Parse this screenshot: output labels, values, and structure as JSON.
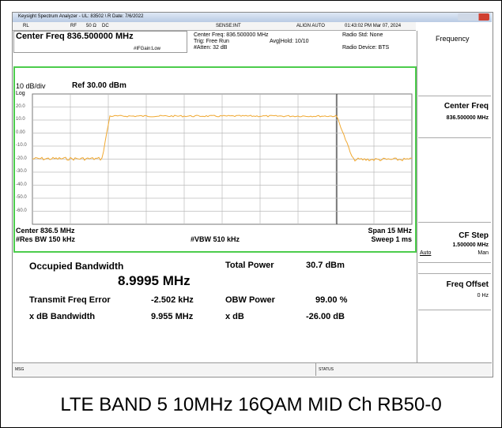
{
  "title_bar": "Keysight Spectrum Analyzer - UL: 83502 \\ R Date: 7/6/2022",
  "toolbar": {
    "rl": "RL",
    "rf": "RF",
    "impedance": "50 Ω",
    "coupling": "DC",
    "sense": "SENSE:INT",
    "align": "ALIGN AUTO",
    "datetime": "01:43:02 PM Mar 07, 2024"
  },
  "header": {
    "center_freq": "Center Freq 836.500000 MHz",
    "center_freq_info": "Center Freq: 836.500000 MHz",
    "trig": "Trig: Free Run",
    "avg_hold": "Avg|Hold: 10/10",
    "atten": "#Atten: 32 dB",
    "if_gain": "#IFGain:Low",
    "radio_std": "Radio Std: None",
    "radio_device": "Radio Device: BTS"
  },
  "graph": {
    "scale": "10 dB/div",
    "ref": "Ref 30.00 dBm",
    "log": "Log",
    "y_labels": [
      "20.0",
      "10.0",
      "0.00",
      "-10.0",
      "-20.0",
      "-30.0",
      "-40.0",
      "-50.0",
      "-60.0"
    ],
    "center": "Center 836.5 MHz",
    "span": "Span 15 MHz",
    "res_bw": "#Res BW 150 kHz",
    "vbw": "#VBW 510 kHz",
    "sweep": "Sweep 1 ms"
  },
  "results": {
    "obw_label": "Occupied Bandwidth",
    "obw_value": "8.9995 MHz",
    "total_power_label": "Total Power",
    "total_power_value": "30.7 dBm",
    "freq_error_label": "Transmit Freq Error",
    "freq_error_value": "-2.502 kHz",
    "obw_power_label": "OBW Power",
    "obw_power_value": "99.00 %",
    "xdb_bw_label": "x dB Bandwidth",
    "xdb_bw_value": "9.955 MHz",
    "xdb_label": "x dB",
    "xdb_value": "-26.00 dB"
  },
  "status_bar": {
    "msg": "MSG",
    "status": "STATUS"
  },
  "menu": {
    "title": "Frequency",
    "center_freq": "Center Freq",
    "center_freq_value": "836.500000 MHz",
    "cf_step": "CF Step",
    "cf_step_value": "1.500000 MHz",
    "auto": "Auto",
    "man": "Man",
    "freq_offset": "Freq Offset",
    "freq_offset_value": "0 Hz"
  },
  "caption": "LTE BAND 5 10MHz 16QAM MID Ch RB50-0"
}
